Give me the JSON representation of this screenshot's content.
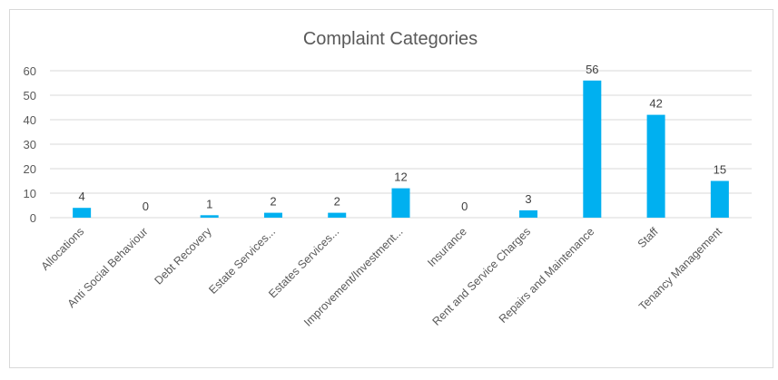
{
  "chart_data": {
    "type": "bar",
    "title": "Complaint Categories",
    "xlabel": "",
    "ylabel": "",
    "ylim": [
      0,
      60
    ],
    "yticks": [
      0,
      10,
      20,
      30,
      40,
      50,
      60
    ],
    "grid": true,
    "legend": "none",
    "bar_color": "#00B0F0",
    "categories": [
      "Allocations",
      "Anti Social Behaviour",
      "Debt Recovery",
      "Estate Services...",
      "Estates Services...",
      "Improvement/Investment...",
      "Insurance",
      "Rent and Service Charges",
      "Repairs and Maintenance",
      "Staff",
      "Tenancy Management"
    ],
    "values": [
      4,
      0,
      1,
      2,
      2,
      12,
      0,
      3,
      56,
      42,
      15
    ]
  }
}
